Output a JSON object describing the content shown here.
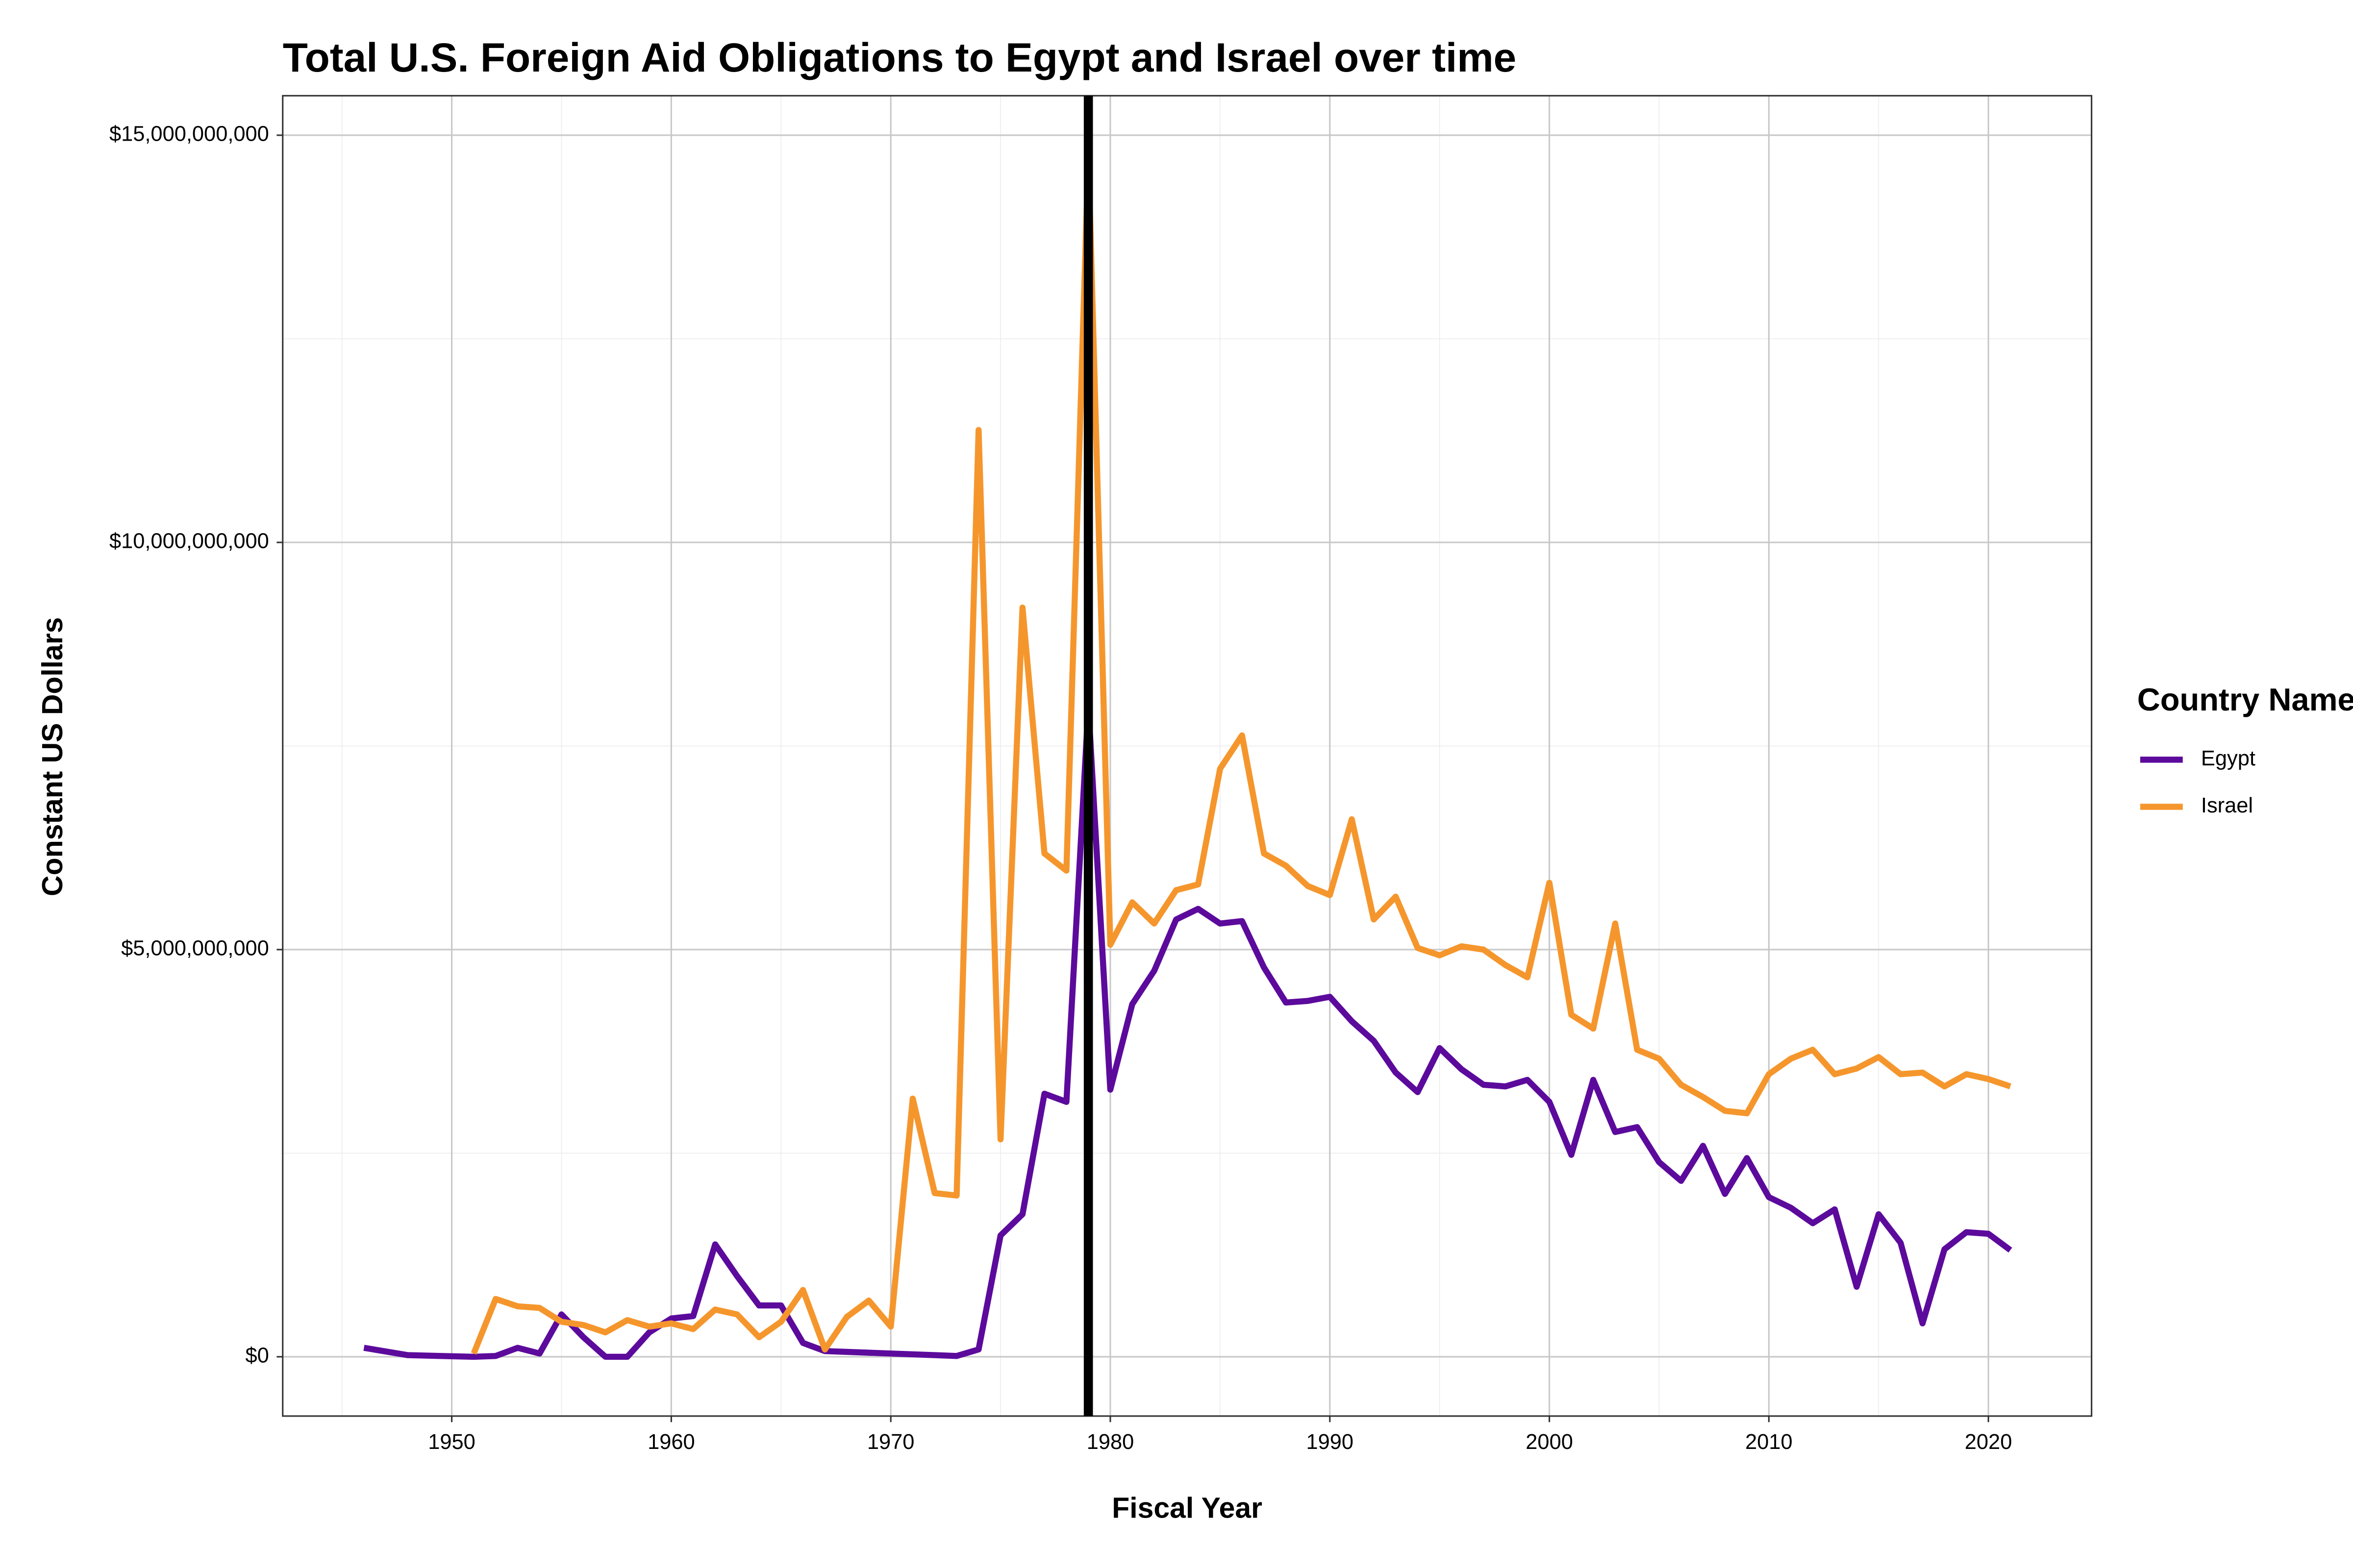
{
  "chart_data": {
    "type": "line",
    "title": "Total U.S. Foreign Aid Obligations to Egypt and Israel over time",
    "x_label": "Fiscal Year",
    "y_label": "Constant US Dollars",
    "legend_title": "Country Name",
    "legend": "right",
    "grid": true,
    "xlim": [
      1942.3,
      2024.7
    ],
    "xticks": [
      1950,
      1960,
      1970,
      1980,
      1990,
      2000,
      2010,
      2020
    ],
    "xminor": [
      1945,
      1955,
      1965,
      1975,
      1985,
      1995,
      2005,
      2015
    ],
    "ylim": [
      -728000000,
      15485000000
    ],
    "yticks": [
      {
        "value": 0,
        "label": "$0"
      },
      {
        "value": 5000000000,
        "label": "$5,000,000,000"
      },
      {
        "value": 10000000000,
        "label": "$10,000,000,000"
      },
      {
        "value": 15000000000,
        "label": "$15,000,000,000"
      }
    ],
    "yminor": [
      2500000000,
      7500000000,
      12500000000
    ],
    "vline": 1979,
    "series": [
      {
        "name": "Egypt",
        "color": "#5c0a9c",
        "x": [
          1946,
          1948,
          1951,
          1952,
          1953,
          1954,
          1955,
          1956,
          1957,
          1958,
          1959,
          1960,
          1961,
          1962,
          1963,
          1964,
          1965,
          1966,
          1967,
          1968,
          1969,
          1970,
          1971,
          1972,
          1973,
          1974,
          1975,
          1976,
          1977,
          1978,
          1979,
          1980,
          1981,
          1982,
          1983,
          1984,
          1985,
          1986,
          1987,
          1988,
          1989,
          1990,
          1991,
          1992,
          1993,
          1994,
          1995,
          1996,
          1997,
          1998,
          1999,
          2000,
          2001,
          2002,
          2003,
          2004,
          2005,
          2006,
          2007,
          2008,
          2009,
          2010,
          2011,
          2012,
          2013,
          2014,
          2015,
          2016,
          2017,
          2018,
          2019,
          2020,
          2021
        ],
        "values": [
          110000000,
          20000000,
          0,
          10000000,
          110000000,
          40000000,
          520000000,
          240000000,
          0,
          0,
          300000000,
          470000000,
          500000000,
          1380000000,
          990000000,
          630000000,
          630000000,
          170000000,
          70000000,
          60000000,
          50000000,
          40000000,
          30000000,
          20000000,
          10000000,
          90000000,
          1490000000,
          1750000000,
          3230000000,
          3130000000,
          7990000000,
          3280000000,
          4330000000,
          4740000000,
          5370000000,
          5500000000,
          5320000000,
          5350000000,
          4780000000,
          4350000000,
          4370000000,
          4420000000,
          4120000000,
          3880000000,
          3490000000,
          3250000000,
          3790000000,
          3530000000,
          3340000000,
          3320000000,
          3400000000,
          3130000000,
          2480000000,
          3400000000,
          2760000000,
          2820000000,
          2390000000,
          2160000000,
          2590000000,
          2000000000,
          2440000000,
          1960000000,
          1830000000,
          1640000000,
          1810000000,
          860000000,
          1750000000,
          1400000000,
          410000000,
          1320000000,
          1530000000,
          1510000000,
          1310000000
        ]
      },
      {
        "name": "Israel",
        "color": "#f5962d",
        "x": [
          1951,
          1952,
          1953,
          1954,
          1955,
          1956,
          1957,
          1958,
          1959,
          1960,
          1961,
          1962,
          1963,
          1964,
          1965,
          1966,
          1967,
          1968,
          1969,
          1970,
          1971,
          1972,
          1973,
          1974,
          1975,
          1976,
          1977,
          1978,
          1979,
          1980,
          1981,
          1982,
          1983,
          1984,
          1985,
          1986,
          1987,
          1988,
          1989,
          1990,
          1991,
          1992,
          1993,
          1994,
          1995,
          1996,
          1997,
          1998,
          1999,
          2000,
          2001,
          2002,
          2003,
          2004,
          2005,
          2006,
          2007,
          2008,
          2009,
          2010,
          2011,
          2012,
          2013,
          2014,
          2015,
          2016,
          2017,
          2018,
          2019,
          2020,
          2021
        ],
        "values": [
          40000000,
          710000000,
          620000000,
          600000000,
          430000000,
          390000000,
          300000000,
          450000000,
          370000000,
          410000000,
          340000000,
          580000000,
          520000000,
          240000000,
          430000000,
          820000000,
          90000000,
          490000000,
          690000000,
          370000000,
          3170000000,
          2010000000,
          1980000000,
          11380000000,
          2670000000,
          9200000000,
          6180000000,
          5970000000,
          14760000000,
          5060000000,
          5580000000,
          5320000000,
          5730000000,
          5800000000,
          7220000000,
          7630000000,
          6180000000,
          6030000000,
          5780000000,
          5670000000,
          6600000000,
          5370000000,
          5650000000,
          5020000000,
          4930000000,
          5040000000,
          5000000000,
          4810000000,
          4660000000,
          5820000000,
          4200000000,
          4030000000,
          5320000000,
          3770000000,
          3660000000,
          3340000000,
          3190000000,
          3020000000,
          2990000000,
          3470000000,
          3660000000,
          3770000000,
          3470000000,
          3540000000,
          3680000000,
          3470000000,
          3490000000,
          3320000000,
          3470000000,
          3410000000,
          3320000000
        ]
      }
    ]
  }
}
